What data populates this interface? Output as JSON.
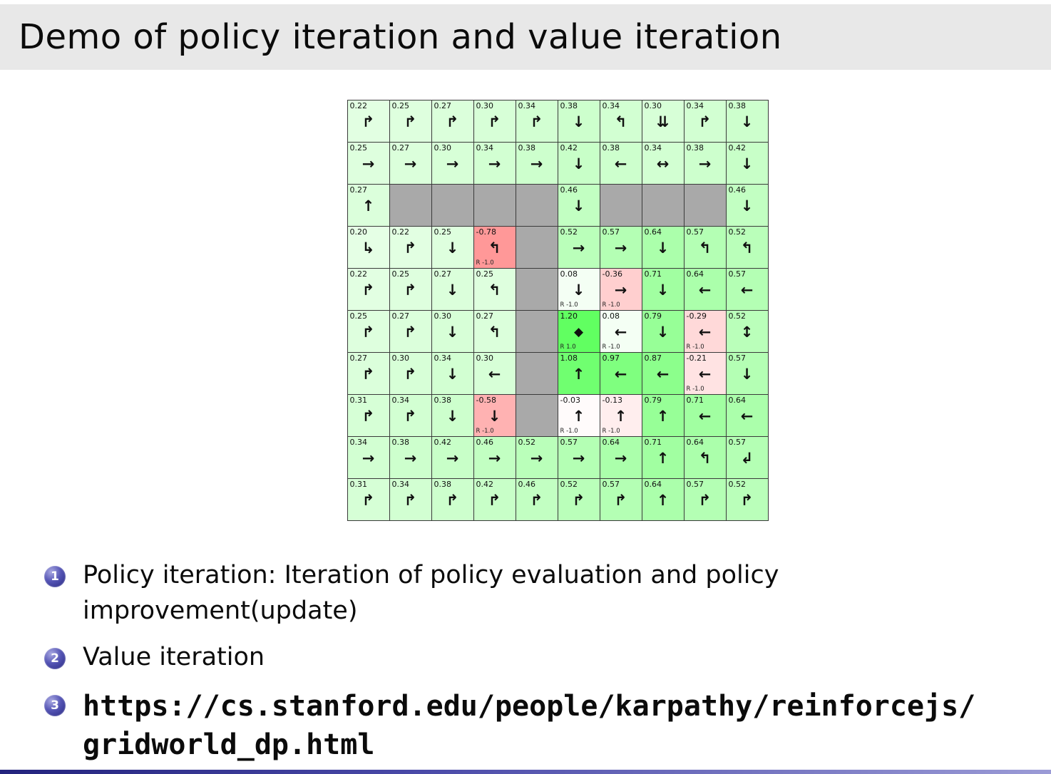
{
  "slide": {
    "title": "Demo of policy iteration and value iteration",
    "bullets": [
      {
        "num": "1",
        "mono": false,
        "lines": [
          "Policy iteration: Iteration of policy evaluation and policy",
          "improvement(update)"
        ]
      },
      {
        "num": "2",
        "mono": false,
        "lines": [
          "Value iteration"
        ]
      },
      {
        "num": "3",
        "mono": true,
        "lines": [
          "https://cs.stanford.edu/people/karpathy/reinforcejs/",
          "gridworld_dp.html"
        ]
      }
    ]
  },
  "colors": {
    "title_bar_bg": "#e8e8e8",
    "wall": "#a9a9a9",
    "grid_border": "#3a3a3a",
    "positive_green_max": "#61ff61",
    "negative_red_max": "#ff9191",
    "footer_blue": "#23237d"
  },
  "gridworld": {
    "rows": 10,
    "cols": 10,
    "cells": [
      {
        "v": "0.22",
        "a": "↱"
      },
      {
        "v": "0.25",
        "a": "↱"
      },
      {
        "v": "0.27",
        "a": "↱"
      },
      {
        "v": "0.30",
        "a": "↱"
      },
      {
        "v": "0.34",
        "a": "↱"
      },
      {
        "v": "0.38",
        "a": "↓"
      },
      {
        "v": "0.34",
        "a": "↰"
      },
      {
        "v": "0.30",
        "a": "⇊"
      },
      {
        "v": "0.34",
        "a": "↱"
      },
      {
        "v": "0.38",
        "a": "↓"
      },
      {
        "v": "0.25",
        "a": "→"
      },
      {
        "v": "0.27",
        "a": "→"
      },
      {
        "v": "0.30",
        "a": "→"
      },
      {
        "v": "0.34",
        "a": "→"
      },
      {
        "v": "0.38",
        "a": "→"
      },
      {
        "v": "0.42",
        "a": "↓"
      },
      {
        "v": "0.38",
        "a": "←"
      },
      {
        "v": "0.34",
        "a": "↔"
      },
      {
        "v": "0.38",
        "a": "→"
      },
      {
        "v": "0.42",
        "a": "↓"
      },
      {
        "v": "0.27",
        "a": "↑"
      },
      {
        "wall": true
      },
      {
        "wall": true
      },
      {
        "wall": true
      },
      {
        "wall": true
      },
      {
        "v": "0.46",
        "a": "↓"
      },
      {
        "wall": true
      },
      {
        "wall": true
      },
      {
        "wall": true
      },
      {
        "v": "0.46",
        "a": "↓"
      },
      {
        "v": "0.20",
        "a": "↳"
      },
      {
        "v": "0.22",
        "a": "↱"
      },
      {
        "v": "0.25",
        "a": "↓"
      },
      {
        "v": "-0.78",
        "a": "↰",
        "r": "R -1.0"
      },
      {
        "wall": true
      },
      {
        "v": "0.52",
        "a": "→"
      },
      {
        "v": "0.57",
        "a": "→"
      },
      {
        "v": "0.64",
        "a": "↓"
      },
      {
        "v": "0.57",
        "a": "↰"
      },
      {
        "v": "0.52",
        "a": "↰"
      },
      {
        "v": "0.22",
        "a": "↱"
      },
      {
        "v": "0.25",
        "a": "↱"
      },
      {
        "v": "0.27",
        "a": "↓"
      },
      {
        "v": "0.25",
        "a": "↰"
      },
      {
        "wall": true
      },
      {
        "v": "0.08",
        "a": "↓",
        "r": "R -1.0"
      },
      {
        "v": "-0.36",
        "a": "→",
        "r": "R -1.0"
      },
      {
        "v": "0.71",
        "a": "↓"
      },
      {
        "v": "0.64",
        "a": "←"
      },
      {
        "v": "0.57",
        "a": "←"
      },
      {
        "v": "0.25",
        "a": "↱"
      },
      {
        "v": "0.27",
        "a": "↱"
      },
      {
        "v": "0.30",
        "a": "↓"
      },
      {
        "v": "0.27",
        "a": "↰"
      },
      {
        "wall": true
      },
      {
        "v": "1.20",
        "a": "◆",
        "r": "R 1.0"
      },
      {
        "v": "0.08",
        "a": "←",
        "r": "R -1.0"
      },
      {
        "v": "0.79",
        "a": "↓"
      },
      {
        "v": "-0.29",
        "a": "←",
        "r": "R -1.0"
      },
      {
        "v": "0.52",
        "a": "↕"
      },
      {
        "v": "0.27",
        "a": "↱"
      },
      {
        "v": "0.30",
        "a": "↱"
      },
      {
        "v": "0.34",
        "a": "↓"
      },
      {
        "v": "0.30",
        "a": "←"
      },
      {
        "wall": true
      },
      {
        "v": "1.08",
        "a": "↑"
      },
      {
        "v": "0.97",
        "a": "←"
      },
      {
        "v": "0.87",
        "a": "←"
      },
      {
        "v": "-0.21",
        "a": "←",
        "r": "R -1.0"
      },
      {
        "v": "0.57",
        "a": "↓"
      },
      {
        "v": "0.31",
        "a": "↱"
      },
      {
        "v": "0.34",
        "a": "↱"
      },
      {
        "v": "0.38",
        "a": "↓"
      },
      {
        "v": "-0.58",
        "a": "↓",
        "r": "R -1.0"
      },
      {
        "wall": true
      },
      {
        "v": "-0.03",
        "a": "↑",
        "r": "R -1.0"
      },
      {
        "v": "-0.13",
        "a": "↑",
        "r": "R -1.0"
      },
      {
        "v": "0.79",
        "a": "↑"
      },
      {
        "v": "0.71",
        "a": "←"
      },
      {
        "v": "0.64",
        "a": "←"
      },
      {
        "v": "0.34",
        "a": "→"
      },
      {
        "v": "0.38",
        "a": "→"
      },
      {
        "v": "0.42",
        "a": "→"
      },
      {
        "v": "0.46",
        "a": "→"
      },
      {
        "v": "0.52",
        "a": "→"
      },
      {
        "v": "0.57",
        "a": "→"
      },
      {
        "v": "0.64",
        "a": "→"
      },
      {
        "v": "0.71",
        "a": "↑"
      },
      {
        "v": "0.64",
        "a": "↰"
      },
      {
        "v": "0.57",
        "a": "↲"
      },
      {
        "v": "0.31",
        "a": "↱"
      },
      {
        "v": "0.34",
        "a": "↱"
      },
      {
        "v": "0.38",
        "a": "↱"
      },
      {
        "v": "0.42",
        "a": "↱"
      },
      {
        "v": "0.46",
        "a": "↱"
      },
      {
        "v": "0.52",
        "a": "↱"
      },
      {
        "v": "0.57",
        "a": "↱"
      },
      {
        "v": "0.64",
        "a": "↑"
      },
      {
        "v": "0.57",
        "a": "↱"
      },
      {
        "v": "0.52",
        "a": "↱"
      }
    ]
  }
}
